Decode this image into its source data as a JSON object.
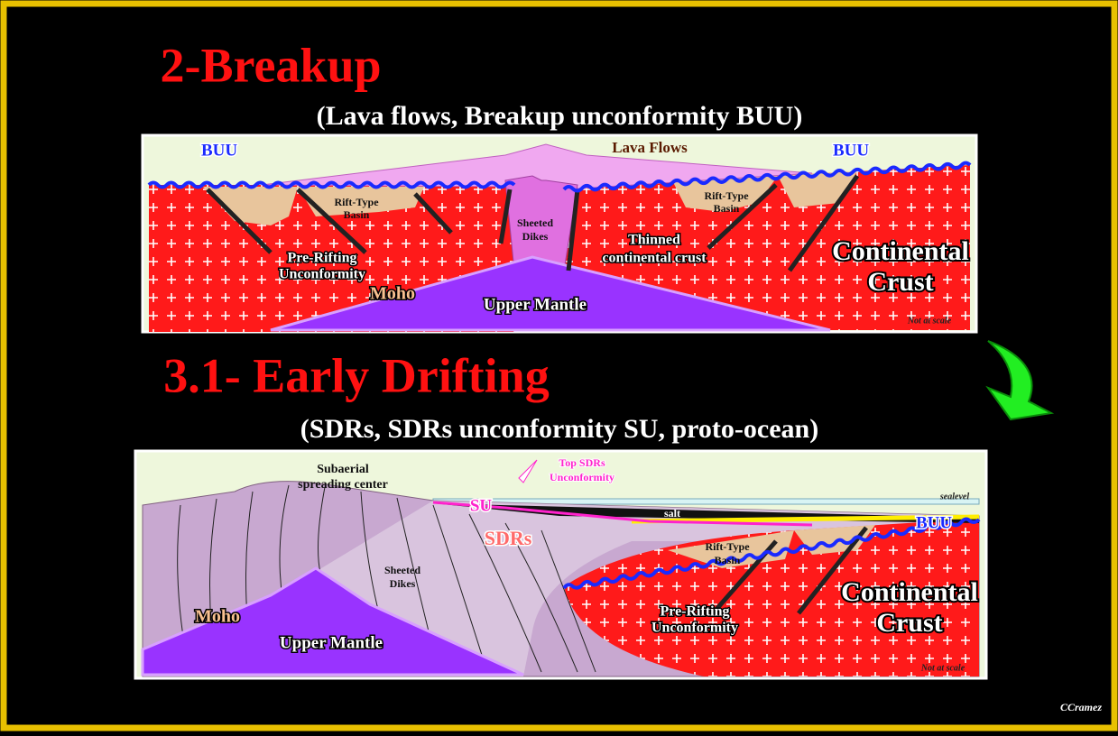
{
  "slide": {
    "title1": "2-Breakup",
    "subtitle1": "(Lava flows, Breakup unconformity BUU)",
    "panel1": {
      "buu_left": "BUU",
      "buu_right": "BUU",
      "lava_flows": "Lava Flows",
      "rift_basin_left": [
        "Rift-Type",
        "Basin"
      ],
      "rift_basin_right": [
        "Rift-Type",
        "Basin"
      ],
      "sheeted_dikes": [
        "Sheeted",
        "Dikes"
      ],
      "pre_rifting": [
        "Pre-Rifting",
        "Unconformity"
      ],
      "thinned_crust": [
        "Thinned",
        "continental crust"
      ],
      "continental_crust": [
        "Continental",
        "Crust"
      ],
      "moho": "Moho",
      "upper_mantle": "Upper Mantle",
      "not_at_scale": "Not at scale"
    },
    "title2": "3.1- Early Drifting",
    "subtitle2": "(SDRs, SDRs unconformity SU, proto-ocean)",
    "panel2": {
      "spreading_center": [
        "Subaerial",
        "spreading center"
      ],
      "top_sdrs": [
        "Top SDRs",
        "Unconformity"
      ],
      "su": "SU",
      "sealevel": "sealevel",
      "salt": "salt",
      "buu": "BUU",
      "sdrs": "SDRs",
      "rift_basin": [
        "Rift-Type",
        "Basin"
      ],
      "sheeted_dikes": [
        "Sheeted",
        "Dikes"
      ],
      "pre_rifting": [
        "Pre-Rifting",
        "Unconformity"
      ],
      "continental_crust": [
        "Continental",
        "Crust"
      ],
      "moho": "Moho",
      "upper_mantle": "Upper Mantle",
      "not_at_scale": "Not at scale"
    },
    "credit": "CCramez"
  }
}
